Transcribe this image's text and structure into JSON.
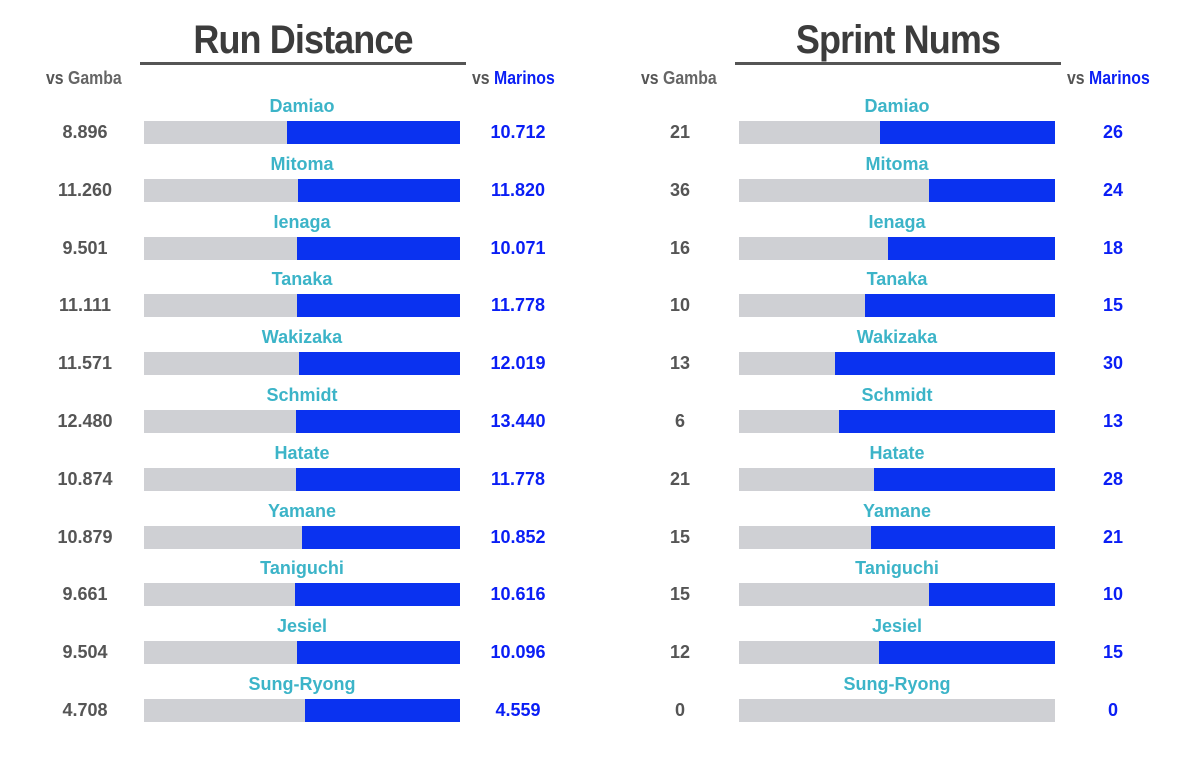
{
  "chart_data": [
    {
      "type": "bar",
      "title": "Run Distance",
      "legend": {
        "left": {
          "prefix": "vs",
          "team": "Gamba"
        },
        "right": {
          "prefix": "vs",
          "team": "Marinos"
        }
      },
      "categories": [
        "Damiao",
        "Mitoma",
        "Ienaga",
        "Tanaka",
        "Wakizaka",
        "Schmidt",
        "Hatate",
        "Yamane",
        "Taniguchi",
        "Jesiel",
        "Sung-Ryong"
      ],
      "series": [
        {
          "name": "Gamba",
          "values": [
            "8.896",
            "11.260",
            "9.501",
            "11.111",
            "11.571",
            "12.480",
            "10.874",
            "10.879",
            "9.661",
            "9.504",
            "4.708"
          ]
        },
        {
          "name": "Marinos",
          "values": [
            "10.712",
            "11.820",
            "10.071",
            "11.778",
            "12.019",
            "13.440",
            "11.778",
            "10.852",
            "10.616",
            "10.096",
            "4.559"
          ]
        }
      ]
    },
    {
      "type": "bar",
      "title": "Sprint Nums",
      "legend": {
        "left": {
          "prefix": "vs",
          "team": "Gamba"
        },
        "right": {
          "prefix": "vs",
          "team": "Marinos"
        }
      },
      "categories": [
        "Damiao",
        "Mitoma",
        "Ienaga",
        "Tanaka",
        "Wakizaka",
        "Schmidt",
        "Hatate",
        "Yamane",
        "Taniguchi",
        "Jesiel",
        "Sung-Ryong"
      ],
      "series": [
        {
          "name": "Gamba",
          "values": [
            "21",
            "36",
            "16",
            "10",
            "13",
            "6",
            "21",
            "15",
            "15",
            "12",
            "0"
          ]
        },
        {
          "name": "Marinos",
          "values": [
            "26",
            "24",
            "18",
            "15",
            "30",
            "13",
            "28",
            "21",
            "10",
            "15",
            "0"
          ]
        }
      ]
    }
  ],
  "colors": {
    "gamba_bar": "#cfd0d4",
    "marinos_bar": "#0a32f0",
    "player_name": "#3cb4c8",
    "gamba_text": "#555555",
    "marinos_text": "#0a1ef5"
  }
}
